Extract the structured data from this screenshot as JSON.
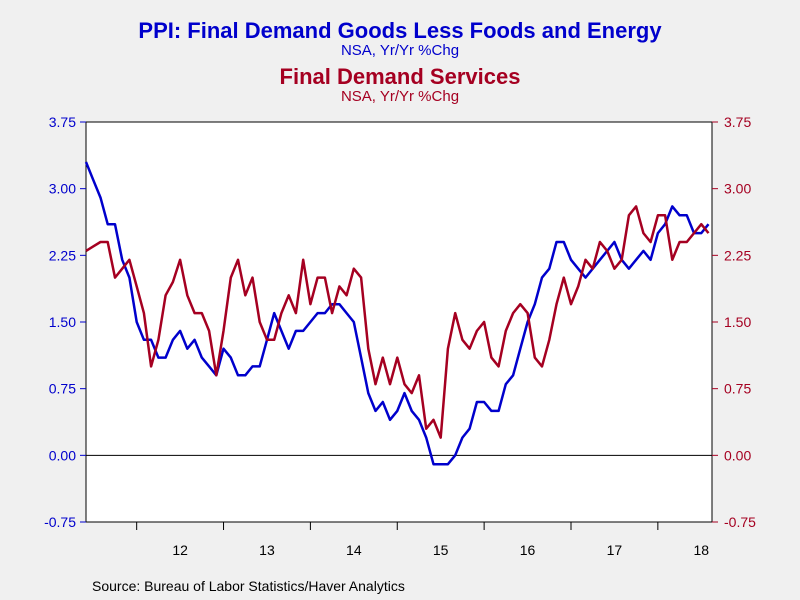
{
  "titles": {
    "title1": "PPI: Final Demand Goods Less Foods and Energy",
    "subtitle1": "NSA, Yr/Yr %Chg",
    "title2": "Final Demand Services",
    "subtitle2": "NSA, Yr/Yr %Chg"
  },
  "source": "Source:  Bureau of Labor Statistics/Haver Analytics",
  "colors": {
    "goods": "#0000cc",
    "services": "#a50021",
    "background": "#f0f0f0",
    "plot_background": "#ffffff"
  },
  "chart_data": {
    "type": "line",
    "title": "PPI: Final Demand Goods Less Foods and Energy",
    "subtitle": "Final Demand Services",
    "x_ticks": [
      "12",
      "13",
      "14",
      "15",
      "16",
      "17",
      "18"
    ],
    "x_start": "2011-06",
    "ylim": [
      -0.75,
      3.75
    ],
    "y_ticks": [
      "-0.75",
      "0.00",
      "0.75",
      "1.50",
      "2.25",
      "3.00",
      "3.75"
    ],
    "y_right_ticks": [
      "-0.75",
      "0.00",
      "0.75",
      "1.50",
      "2.25",
      "3.00",
      "3.75"
    ],
    "grid": false,
    "zero_line": true,
    "series": [
      {
        "name": "PPI: Final Demand Goods Less Foods and Energy",
        "axis": "left",
        "values": [
          3.3,
          3.1,
          2.9,
          2.6,
          2.6,
          2.2,
          2.0,
          1.5,
          1.3,
          1.3,
          1.1,
          1.1,
          1.3,
          1.4,
          1.2,
          1.3,
          1.1,
          1.0,
          0.9,
          1.2,
          1.1,
          0.9,
          0.9,
          1.0,
          1.0,
          1.3,
          1.6,
          1.4,
          1.2,
          1.4,
          1.4,
          1.5,
          1.6,
          1.6,
          1.7,
          1.7,
          1.6,
          1.5,
          1.1,
          0.7,
          0.5,
          0.6,
          0.4,
          0.5,
          0.7,
          0.5,
          0.4,
          0.2,
          -0.1,
          -0.1,
          -0.1,
          0.0,
          0.2,
          0.3,
          0.6,
          0.6,
          0.5,
          0.5,
          0.8,
          0.9,
          1.2,
          1.5,
          1.7,
          2.0,
          2.1,
          2.4,
          2.4,
          2.2,
          2.1,
          2.0,
          2.1,
          2.2,
          2.3,
          2.4,
          2.2,
          2.1,
          2.2,
          2.3,
          2.2,
          2.5,
          2.6,
          2.8,
          2.7,
          2.7,
          2.5,
          2.5,
          2.6
        ]
      },
      {
        "name": "Final Demand Services",
        "axis": "right",
        "values": [
          2.3,
          2.35,
          2.4,
          2.4,
          2.0,
          2.1,
          2.2,
          1.9,
          1.6,
          1.0,
          1.3,
          1.8,
          1.95,
          2.2,
          1.8,
          1.6,
          1.6,
          1.4,
          0.9,
          1.4,
          2.0,
          2.2,
          1.8,
          2.0,
          1.5,
          1.3,
          1.3,
          1.6,
          1.8,
          1.6,
          2.2,
          1.7,
          2.0,
          2.0,
          1.6,
          1.9,
          1.8,
          2.1,
          2.0,
          1.2,
          0.8,
          1.1,
          0.8,
          1.1,
          0.8,
          0.7,
          0.9,
          0.3,
          0.4,
          0.2,
          1.2,
          1.6,
          1.3,
          1.2,
          1.4,
          1.5,
          1.1,
          1.0,
          1.4,
          1.6,
          1.7,
          1.6,
          1.1,
          1.0,
          1.3,
          1.7,
          2.0,
          1.7,
          1.9,
          2.2,
          2.1,
          2.4,
          2.3,
          2.1,
          2.2,
          2.7,
          2.8,
          2.5,
          2.4,
          2.7,
          2.7,
          2.2,
          2.4,
          2.4,
          2.5,
          2.6,
          2.5
        ]
      }
    ]
  }
}
